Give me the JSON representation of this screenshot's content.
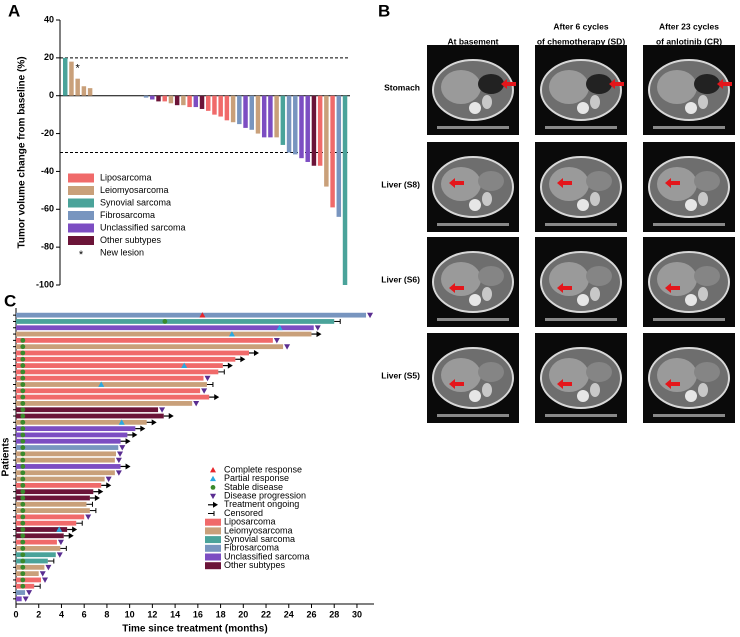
{
  "chart_data": [
    {
      "type": "bar",
      "panel": "A",
      "ylabel": "Tumor volume change from baseline (%)",
      "ylim": [
        -100,
        40
      ],
      "yticks": [
        -100,
        -80,
        -60,
        -40,
        -20,
        0,
        20,
        40
      ],
      "reference_lines": [
        20,
        -30
      ],
      "values": [
        20,
        18,
        9,
        5,
        4,
        0,
        0,
        0,
        0,
        0,
        0,
        0,
        0,
        -1,
        -2,
        -3,
        -3,
        -4,
        -5,
        -5,
        -6,
        -6,
        -7,
        -8,
        -10,
        -11,
        -13,
        -14,
        -15,
        -17,
        -18,
        -20,
        -22,
        -22,
        -22,
        -26,
        -30,
        -31,
        -33,
        -35,
        -37,
        -37,
        -48,
        -59,
        -64,
        -100
      ],
      "colors": [
        "#4aa39a",
        "#c9a07a",
        "#c9a07a",
        "#c9a07a",
        "#c9a07a",
        "#f06a6a",
        "#f06a6a",
        "#f06a6a",
        "#f06a6a",
        "#f06a6a",
        "#f06a6a",
        "#f06a6a",
        "#f06a6a",
        "#7895bf",
        "#7c4dc2",
        "#6b1438",
        "#f06a6a",
        "#c9a07a",
        "#6b1438",
        "#c9a07a",
        "#f06a6a",
        "#7c4dc2",
        "#6b1438",
        "#f06a6a",
        "#f06a6a",
        "#f06a6a",
        "#f06a6a",
        "#c9a07a",
        "#7895bf",
        "#7c4dc2",
        "#7895bf",
        "#c9a07a",
        "#7c4dc2",
        "#7c4dc2",
        "#c9a07a",
        "#4aa39a",
        "#7895bf",
        "#7895bf",
        "#7c4dc2",
        "#7c4dc2",
        "#6b1438",
        "#f06a6a",
        "#c9a07a",
        "#f06a6a",
        "#7895bf",
        "#4aa39a"
      ],
      "legend": [
        {
          "name": "Liposarcoma",
          "color": "#f06a6a"
        },
        {
          "name": "Leiomyosarcoma",
          "color": "#c9a07a"
        },
        {
          "name": "Synovial sarcoma",
          "color": "#4aa39a"
        },
        {
          "name": "Fibrosarcoma",
          "color": "#7895bf"
        },
        {
          "name": "Unclassified sarcoma",
          "color": "#7c4dc2"
        },
        {
          "name": "Other subtypes",
          "color": "#6b1438"
        }
      ],
      "annotations": [
        {
          "text": "*",
          "index": 2
        }
      ],
      "new_lesion": {
        "symbol": "*",
        "label": "New lesion"
      }
    },
    {
      "type": "swimmer",
      "panel": "C",
      "xlabel": "Time since treatment (months)",
      "ylabel": "Patients",
      "xlim": [
        0,
        31.5
      ],
      "xticks": [
        0,
        2,
        4,
        6,
        8,
        10,
        12,
        14,
        16,
        18,
        20,
        22,
        24,
        26,
        28,
        30
      ],
      "marker_legend": [
        {
          "label": "Complete response",
          "shape": "triangle-up",
          "color": "#e8262b"
        },
        {
          "label": "Partial response",
          "shape": "triangle-up",
          "color": "#2aa8e0"
        },
        {
          "label": "Stable disease",
          "shape": "circle",
          "color": "#3a8a2c"
        },
        {
          "label": "Disease progression",
          "shape": "triangle-down",
          "color": "#5a2d91"
        },
        {
          "label": "Treatment ongoing",
          "shape": "arrow",
          "color": "#000000"
        },
        {
          "label": "Censored",
          "shape": "bar",
          "color": "#000000"
        }
      ],
      "legend": [
        {
          "name": "Liposarcoma",
          "color": "#f06a6a"
        },
        {
          "name": "Leiomyosarcoma",
          "color": "#c9a07a"
        },
        {
          "name": "Synovial sarcoma",
          "color": "#4aa39a"
        },
        {
          "name": "Fibrosarcoma",
          "color": "#7895bf"
        },
        {
          "name": "Unclassified sarcoma",
          "color": "#7c4dc2"
        },
        {
          "name": "Other subtypes",
          "color": "#6b1438"
        }
      ],
      "patients": [
        {
          "months": 30.8,
          "color": "#7895bf",
          "end": "triangle-down",
          "markers": [
            {
              "shape": "triangle-up",
              "color": "#e8262b",
              "month": 16.4
            }
          ]
        },
        {
          "months": 28.0,
          "color": "#4aa39a",
          "end": "bar",
          "markers": [
            {
              "shape": "circle",
              "color": "#3a8a2c",
              "month": 13.1
            }
          ]
        },
        {
          "months": 26.2,
          "color": "#7c4dc2",
          "end": "triangle-down",
          "markers": [
            {
              "shape": "triangle-up",
              "color": "#2aa8e0",
              "month": 23.2
            }
          ]
        },
        {
          "months": 26.0,
          "color": "#c9a07a",
          "end": "arrow",
          "markers": [
            {
              "shape": "triangle-up",
              "color": "#2aa8e0",
              "month": 19.0
            }
          ]
        },
        {
          "months": 22.6,
          "color": "#f06a6a",
          "end": "triangle-down",
          "markers": [
            {
              "shape": "circle",
              "color": "#3a8a2c",
              "month": 0.6
            }
          ]
        },
        {
          "months": 23.5,
          "color": "#c9a07a",
          "end": "triangle-down",
          "markers": [
            {
              "shape": "circle",
              "color": "#3a8a2c",
              "month": 0.6
            }
          ]
        },
        {
          "months": 20.5,
          "color": "#f06a6a",
          "end": "arrow",
          "markers": [
            {
              "shape": "circle",
              "color": "#3a8a2c",
              "month": 0.6
            }
          ]
        },
        {
          "months": 19.3,
          "color": "#f06a6a",
          "end": "arrow",
          "markers": [
            {
              "shape": "circle",
              "color": "#3a8a2c",
              "month": 0.6
            }
          ]
        },
        {
          "months": 18.2,
          "color": "#f06a6a",
          "end": "arrow",
          "markers": [
            {
              "shape": "circle",
              "color": "#3a8a2c",
              "month": 0.6
            },
            {
              "shape": "triangle-up",
              "color": "#2aa8e0",
              "month": 14.8
            }
          ]
        },
        {
          "months": 17.8,
          "color": "#f06a6a",
          "end": "bar",
          "markers": [
            {
              "shape": "circle",
              "color": "#3a8a2c",
              "month": 0.6
            }
          ]
        },
        {
          "months": 16.5,
          "color": "#f06a6a",
          "end": "triangle-down",
          "markers": [
            {
              "shape": "circle",
              "color": "#3a8a2c",
              "month": 0.6
            }
          ]
        },
        {
          "months": 16.8,
          "color": "#c9a07a",
          "end": "bar",
          "markers": [
            {
              "shape": "circle",
              "color": "#3a8a2c",
              "month": 0.6
            },
            {
              "shape": "triangle-up",
              "color": "#2aa8e0",
              "month": 7.5
            }
          ]
        },
        {
          "months": 16.2,
          "color": "#f06a6a",
          "end": "triangle-down",
          "markers": [
            {
              "shape": "circle",
              "color": "#3a8a2c",
              "month": 0.6
            }
          ]
        },
        {
          "months": 17.0,
          "color": "#f06a6a",
          "end": "arrow",
          "markers": [
            {
              "shape": "circle",
              "color": "#3a8a2c",
              "month": 0.6
            }
          ]
        },
        {
          "months": 15.5,
          "color": "#c9a07a",
          "end": "triangle-down",
          "markers": [
            {
              "shape": "circle",
              "color": "#3a8a2c",
              "month": 0.6
            }
          ]
        },
        {
          "months": 12.5,
          "color": "#6b1438",
          "end": "triangle-down",
          "markers": [
            {
              "shape": "circle",
              "color": "#3a8a2c",
              "month": 0.6
            }
          ]
        },
        {
          "months": 13.0,
          "color": "#6b1438",
          "end": "arrow",
          "markers": [
            {
              "shape": "circle",
              "color": "#3a8a2c",
              "month": 0.6
            }
          ]
        },
        {
          "months": 11.5,
          "color": "#c9a07a",
          "end": "arrow",
          "markers": [
            {
              "shape": "circle",
              "color": "#3a8a2c",
              "month": 0.6
            },
            {
              "shape": "triangle-up",
              "color": "#2aa8e0",
              "month": 9.3
            }
          ]
        },
        {
          "months": 10.5,
          "color": "#7c4dc2",
          "end": "arrow",
          "markers": [
            {
              "shape": "circle",
              "color": "#3a8a2c",
              "month": 0.6
            }
          ]
        },
        {
          "months": 9.8,
          "color": "#7c4dc2",
          "end": "arrow",
          "markers": [
            {
              "shape": "circle",
              "color": "#3a8a2c",
              "month": 0.6
            }
          ]
        },
        {
          "months": 9.2,
          "color": "#7c4dc2",
          "end": "arrow",
          "markers": [
            {
              "shape": "circle",
              "color": "#3a8a2c",
              "month": 0.6
            }
          ]
        },
        {
          "months": 9.0,
          "color": "#7895bf",
          "end": "triangle-down",
          "markers": [
            {
              "shape": "circle",
              "color": "#3a8a2c",
              "month": 0.6
            }
          ]
        },
        {
          "months": 8.8,
          "color": "#c9a07a",
          "end": "triangle-down",
          "markers": [
            {
              "shape": "circle",
              "color": "#3a8a2c",
              "month": 0.6
            }
          ]
        },
        {
          "months": 8.7,
          "color": "#c9a07a",
          "end": "triangle-down",
          "markers": [
            {
              "shape": "circle",
              "color": "#3a8a2c",
              "month": 0.6
            }
          ]
        },
        {
          "months": 9.2,
          "color": "#7c4dc2",
          "end": "arrow",
          "markers": [
            {
              "shape": "circle",
              "color": "#3a8a2c",
              "month": 0.6
            }
          ]
        },
        {
          "months": 8.7,
          "color": "#c9a07a",
          "end": "triangle-down",
          "markers": [
            {
              "shape": "circle",
              "color": "#3a8a2c",
              "month": 0.6
            }
          ]
        },
        {
          "months": 7.8,
          "color": "#c9a07a",
          "end": "triangle-down",
          "markers": [
            {
              "shape": "circle",
              "color": "#3a8a2c",
              "month": 0.6
            }
          ]
        },
        {
          "months": 7.5,
          "color": "#f06a6a",
          "end": "arrow",
          "markers": [
            {
              "shape": "circle",
              "color": "#3a8a2c",
              "month": 0.6
            }
          ]
        },
        {
          "months": 6.8,
          "color": "#6b1438",
          "end": "arrow",
          "markers": [
            {
              "shape": "circle",
              "color": "#3a8a2c",
              "month": 0.6
            }
          ]
        },
        {
          "months": 6.5,
          "color": "#6b1438",
          "end": "arrow",
          "markers": [
            {
              "shape": "circle",
              "color": "#3a8a2c",
              "month": 0.6
            }
          ]
        },
        {
          "months": 6.2,
          "color": "#c9a07a",
          "end": "bar",
          "markers": [
            {
              "shape": "circle",
              "color": "#3a8a2c",
              "month": 0.6
            }
          ]
        },
        {
          "months": 6.5,
          "color": "#c9a07a",
          "end": "bar",
          "markers": [
            {
              "shape": "circle",
              "color": "#3a8a2c",
              "month": 0.6
            }
          ]
        },
        {
          "months": 6.0,
          "color": "#f06a6a",
          "end": "triangle-down",
          "markers": [
            {
              "shape": "circle",
              "color": "#3a8a2c",
              "month": 0.6
            }
          ]
        },
        {
          "months": 5.3,
          "color": "#f06a6a",
          "end": "bar",
          "markers": [
            {
              "shape": "circle",
              "color": "#3a8a2c",
              "month": 0.6
            }
          ]
        },
        {
          "months": 4.5,
          "color": "#6b1438",
          "end": "arrow",
          "markers": [
            {
              "shape": "circle",
              "color": "#3a8a2c",
              "month": 0.6
            },
            {
              "shape": "triangle-up",
              "color": "#2aa8e0",
              "month": 3.8
            }
          ]
        },
        {
          "months": 4.2,
          "color": "#6b1438",
          "end": "arrow",
          "markers": [
            {
              "shape": "circle",
              "color": "#3a8a2c",
              "month": 0.6
            }
          ]
        },
        {
          "months": 3.6,
          "color": "#f06a6a",
          "end": "triangle-down",
          "markers": [
            {
              "shape": "circle",
              "color": "#3a8a2c",
              "month": 0.6
            }
          ]
        },
        {
          "months": 3.9,
          "color": "#c9a07a",
          "end": "bar",
          "markers": [
            {
              "shape": "circle",
              "color": "#3a8a2c",
              "month": 0.6
            }
          ]
        },
        {
          "months": 3.5,
          "color": "#4aa39a",
          "end": "triangle-down",
          "markers": [
            {
              "shape": "circle",
              "color": "#3a8a2c",
              "month": 0.6
            }
          ]
        },
        {
          "months": 2.8,
          "color": "#4aa39a",
          "end": "bar",
          "markers": [
            {
              "shape": "circle",
              "color": "#3a8a2c",
              "month": 0.6
            }
          ]
        },
        {
          "months": 2.5,
          "color": "#c9a07a",
          "end": "triangle-down",
          "markers": [
            {
              "shape": "circle",
              "color": "#3a8a2c",
              "month": 0.6
            }
          ]
        },
        {
          "months": 2.0,
          "color": "#c9a07a",
          "end": "triangle-down",
          "markers": [
            {
              "shape": "circle",
              "color": "#3a8a2c",
              "month": 0.6
            }
          ]
        },
        {
          "months": 2.2,
          "color": "#f06a6a",
          "end": "triangle-down",
          "markers": [
            {
              "shape": "circle",
              "color": "#3a8a2c",
              "month": 0.6
            }
          ]
        },
        {
          "months": 1.6,
          "color": "#f06a6a",
          "end": "bar",
          "markers": [
            {
              "shape": "circle",
              "color": "#3a8a2c",
              "month": 0.6
            }
          ]
        },
        {
          "months": 0.8,
          "color": "#7895bf",
          "end": "triangle-down",
          "markers": []
        },
        {
          "months": 0.5,
          "color": "#7c4dc2",
          "end": "triangle-down",
          "markers": []
        }
      ]
    }
  ],
  "panel_b": {
    "label": "B",
    "columns": [
      [
        "At basement"
      ],
      [
        "After 6 cycles",
        "of chemotherapy (SD)"
      ],
      [
        "After 23 cycles",
        "of anlotinib (CR)"
      ]
    ],
    "rows": [
      "Stomach",
      "Liver (S8)",
      "Liver (S6)",
      "Liver (S5)"
    ]
  }
}
